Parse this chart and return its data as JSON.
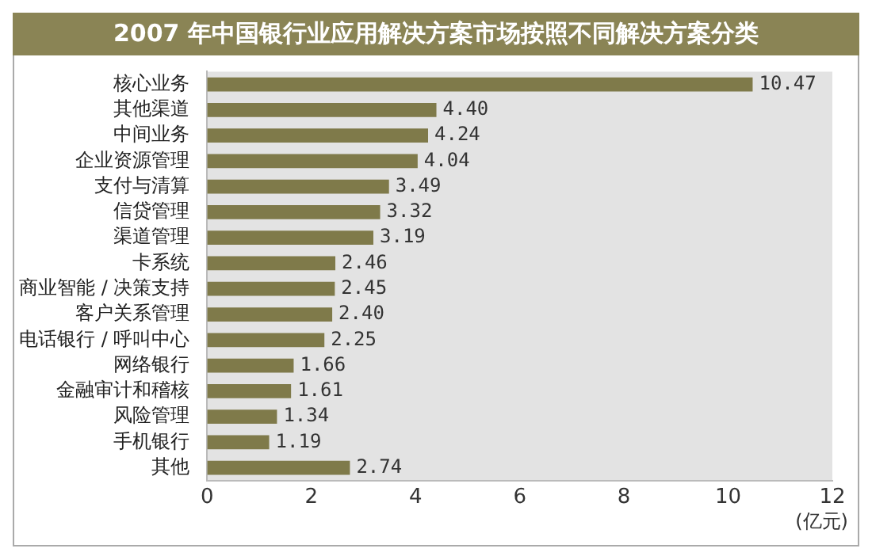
{
  "chart_data": {
    "type": "bar",
    "orientation": "horizontal",
    "title": "2007 年中国银行业应用解决方案市场按照不同解决方案分类",
    "xlabel": "(亿元)",
    "categories": [
      "核心业务",
      "其他渠道",
      "中间业务",
      "企业资源管理",
      "支付与清算",
      "信贷管理",
      "渠道管理",
      "卡系统",
      "商业智能 / 决策支持",
      "客户关系管理",
      "电话银行 / 呼叫中心",
      "网络银行",
      "金融审计和稽核",
      "风险管理",
      "手机银行",
      "其他"
    ],
    "values": [
      10.47,
      4.4,
      4.24,
      4.04,
      3.49,
      3.32,
      3.19,
      2.46,
      2.45,
      2.4,
      2.25,
      1.66,
      1.61,
      1.34,
      1.19,
      2.74
    ],
    "value_labels": [
      "10.47",
      "4.40",
      "4.24",
      "4.04",
      "3.49",
      "3.32",
      "3.19",
      "2.46",
      "2.45",
      "2.40",
      "2.25",
      "1.66",
      "1.61",
      "1.34",
      "1.19",
      "2.74"
    ],
    "color": "#7f7a4a",
    "xlim": [
      0,
      12
    ],
    "xticks": [
      0,
      2,
      4,
      6,
      8,
      10,
      12
    ],
    "grid": false,
    "legend": false
  }
}
